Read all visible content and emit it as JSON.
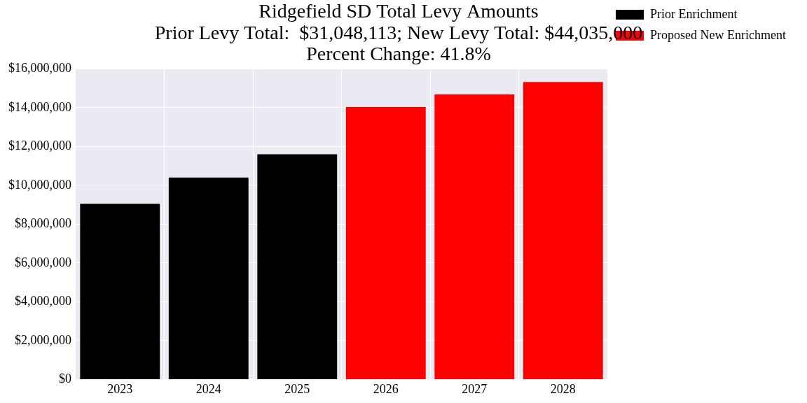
{
  "chart_data": {
    "type": "bar",
    "title": [
      "Ridgefield SD Total Levy Amounts",
      "Prior Levy Total:  $31,048,113; New Levy Total: $44,035,000",
      "Percent Change: 41.8%"
    ],
    "categories": [
      "2023",
      "2024",
      "2025",
      "2026",
      "2027",
      "2028"
    ],
    "series": [
      {
        "name": "Prior Enrichment",
        "color": "#000000",
        "values": [
          9050000,
          10400000,
          11600000,
          null,
          null,
          null
        ]
      },
      {
        "name": "Proposed New Enrichment",
        "color": "#ff0000",
        "values": [
          null,
          null,
          null,
          14030000,
          14680000,
          15325000
        ]
      }
    ],
    "ylim": [
      0,
      16000000
    ],
    "yticks": [
      {
        "value": 0,
        "label": "$0"
      },
      {
        "value": 2000000,
        "label": "$2,000,000"
      },
      {
        "value": 4000000,
        "label": "$4,000,000"
      },
      {
        "value": 6000000,
        "label": "$6,000,000"
      },
      {
        "value": 8000000,
        "label": "$8,000,000"
      },
      {
        "value": 10000000,
        "label": "$10,000,000"
      },
      {
        "value": 12000000,
        "label": "$12,000,000"
      },
      {
        "value": 14000000,
        "label": "$14,000,000"
      },
      {
        "value": 16000000,
        "label": "$16,000,000"
      }
    ],
    "grid": true,
    "legend": "right"
  }
}
